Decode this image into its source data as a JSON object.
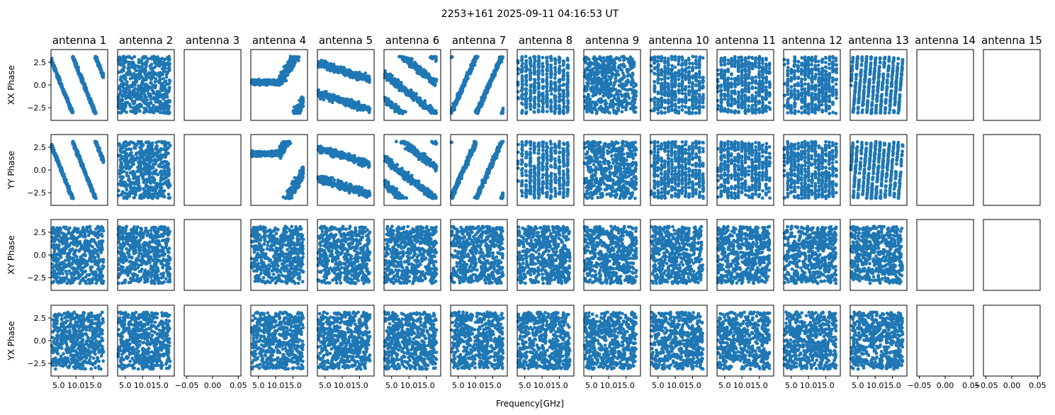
{
  "figure": {
    "title": "2253+161 2025-09-11 04:16:53 UT",
    "xlabel": "Frequency[GHz]"
  },
  "chart_data": {
    "type": "scatter",
    "title": "2253+161 2025-09-11 04:16:53 UT",
    "xlabel": "Frequency[GHz]",
    "marker_color": "#1f77b4",
    "grid": false,
    "antennas": [
      "antenna 1",
      "antenna 2",
      "antenna 3",
      "antenna 4",
      "antenna 5",
      "antenna 6",
      "antenna 7",
      "antenna 8",
      "antenna 9",
      "antenna 10",
      "antenna 11",
      "antenna 12",
      "antenna 13",
      "antenna 14",
      "antenna 15"
    ],
    "rows": [
      "XX Phase",
      "YY Phase",
      "XY Phase",
      "YX Phase"
    ],
    "ylim": [
      -3.9,
      3.9
    ],
    "yticks": [
      -2.5,
      0.0,
      2.5
    ],
    "ytick_labels": [
      "−2.5",
      "0.0",
      "2.5"
    ],
    "data_xlim": [
      2.8,
      19.2
    ],
    "data_xticks": [
      5.0,
      10.0,
      15.0
    ],
    "data_xtick_labels": [
      "5.0",
      "10.0",
      "15.0"
    ],
    "empty_xlim": [
      -0.055,
      0.055
    ],
    "empty_xticks": [
      -0.05,
      0.0,
      0.05
    ],
    "empty_xtick_labels": [
      "−0.05",
      "0.00",
      "0.05"
    ],
    "frequency_range_ghz": [
      3.0,
      18.0
    ],
    "points_per_panel": 560,
    "panels_without_data": {
      "antenna 3": [
        "XX Phase",
        "YY Phase",
        "XY Phase",
        "YX Phase"
      ],
      "antenna 14": [
        "XX Phase",
        "YY Phase",
        "XY Phase",
        "YX Phase"
      ],
      "antenna 15": [
        "XX Phase",
        "YY Phase",
        "XY Phase",
        "YX Phase"
      ]
    },
    "phase_pattern": {
      "antenna 1": {
        "XX Phase": "v-shape wrap",
        "YY Phase": "v-shape wrap",
        "XY Phase": "random",
        "YX Phase": "random"
      },
      "antenna 2": {
        "XX Phase": "random",
        "YY Phase": "random",
        "XY Phase": "random",
        "YX Phase": "random"
      },
      "antenna 4": {
        "XX Phase": "near-flat ~0.3 rad then wrap",
        "YY Phase": "near-flat ~1.8 rad then wrap",
        "XY Phase": "random",
        "YX Phase": "random"
      },
      "antenna 5": {
        "XX Phase": "slow slope, two bands",
        "YY Phase": "slow slope, two bands",
        "XY Phase": "random",
        "YX Phase": "random"
      },
      "antenna 6": {
        "XX Phase": "moderate slope, two bands",
        "YY Phase": "moderate slope, two bands",
        "XY Phase": "random",
        "YX Phase": "random"
      },
      "antenna 7": {
        "XX Phase": "steep slope wrapping",
        "YY Phase": "steep slope wrapping",
        "XY Phase": "random",
        "YX Phase": "random"
      },
      "antenna 8": {
        "XX Phase": "vertical stripes",
        "YY Phase": "vertical stripes",
        "XY Phase": "random",
        "YX Phase": "random"
      },
      "antenna 9": {
        "XX Phase": "random",
        "YY Phase": "random",
        "XY Phase": "random",
        "YX Phase": "random"
      },
      "antenna 10": {
        "XX Phase": "fine stripes",
        "YY Phase": "fine stripes",
        "XY Phase": "random",
        "YX Phase": "random"
      },
      "antenna 11": {
        "XX Phase": "fine stripes",
        "YY Phase": "fine stripes",
        "XY Phase": "random",
        "YX Phase": "random"
      },
      "antenna 12": {
        "XX Phase": "fine stripes",
        "YY Phase": "fine stripes",
        "XY Phase": "random",
        "YX Phase": "random"
      },
      "antenna 13": {
        "XX Phase": "steep diagonal wraps",
        "YY Phase": "steep diagonal wraps",
        "XY Phase": "random",
        "YX Phase": "random"
      }
    }
  }
}
